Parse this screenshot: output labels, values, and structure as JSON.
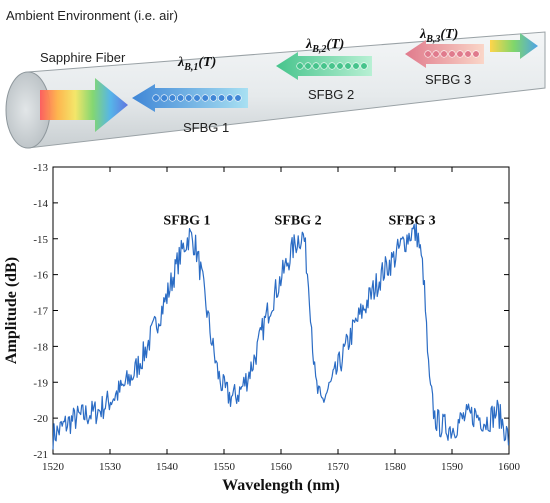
{
  "diagram": {
    "caption": "Ambient Environment (i.e. air)",
    "fiber_label": "Sapphire Fiber",
    "gratings": [
      {
        "name": "SFBG 1",
        "wavelength_label": "λB,1(T)",
        "symbol": "λ",
        "sub": "B,1",
        "arg": "(T)",
        "color": "#3f86d6"
      },
      {
        "name": "SFBG 2",
        "wavelength_label": "λB,2(T)",
        "symbol": "λ",
        "sub": "B,2",
        "arg": "(T)",
        "color": "#46c48c"
      },
      {
        "name": "SFBG 3",
        "wavelength_label": "λB,3(T)",
        "symbol": "λ",
        "sub": "B,3",
        "arg": "(T)",
        "color": "#e07a8c"
      }
    ]
  },
  "chart_data": {
    "type": "line",
    "title": "",
    "xlabel": "Wavelength (nm)",
    "ylabel": "Amplitude (dB)",
    "xlim": [
      1520,
      1600
    ],
    "ylim": [
      -21,
      -13
    ],
    "xticks": [
      1520,
      1530,
      1540,
      1550,
      1560,
      1570,
      1580,
      1590,
      1600
    ],
    "yticks": [
      -13,
      -14,
      -15,
      -16,
      -17,
      -18,
      -19,
      -20,
      -21
    ],
    "grid": false,
    "color": "#2b6cc4",
    "annotations": [
      {
        "text": "SFBG 1",
        "x": 1543.5,
        "y": -14.6
      },
      {
        "text": "SFBG 2",
        "x": 1563,
        "y": -14.6
      },
      {
        "text": "SFBG 3",
        "x": 1583,
        "y": -14.6
      }
    ],
    "x": [
      1520,
      1522,
      1524,
      1526,
      1528,
      1530,
      1532,
      1534,
      1536,
      1538,
      1540,
      1541,
      1542,
      1543,
      1544,
      1545,
      1546,
      1547,
      1548,
      1549,
      1550,
      1551,
      1552,
      1553,
      1554,
      1555,
      1556,
      1557,
      1558,
      1559,
      1560,
      1561,
      1562,
      1563,
      1564,
      1565,
      1566,
      1567,
      1568,
      1569,
      1570,
      1571,
      1572,
      1573,
      1574,
      1575,
      1576,
      1577,
      1578,
      1579,
      1580,
      1581,
      1582,
      1583,
      1584,
      1585,
      1586,
      1587,
      1588,
      1590,
      1592,
      1594,
      1596,
      1598,
      1600
    ],
    "y": [
      -20.5,
      -20.2,
      -20.0,
      -19.9,
      -19.8,
      -19.5,
      -19.2,
      -18.8,
      -18.2,
      -17.4,
      -16.6,
      -16.1,
      -15.6,
      -15.2,
      -14.9,
      -15.2,
      -16.0,
      -17.0,
      -18.0,
      -18.8,
      -19.2,
      -19.4,
      -19.4,
      -19.2,
      -18.9,
      -18.5,
      -18.0,
      -17.4,
      -16.9,
      -16.5,
      -16.1,
      -15.7,
      -15.3,
      -15.0,
      -14.9,
      -16.5,
      -19.0,
      -19.6,
      -19.3,
      -19.0,
      -18.6,
      -18.2,
      -17.8,
      -17.4,
      -17.1,
      -16.8,
      -16.5,
      -16.2,
      -15.9,
      -15.7,
      -15.5,
      -15.2,
      -15.0,
      -14.8,
      -14.9,
      -16.0,
      -19.0,
      -20.0,
      -20.2,
      -20.3,
      -20.0,
      -19.9,
      -20.1,
      -19.8,
      -20.6
    ]
  }
}
